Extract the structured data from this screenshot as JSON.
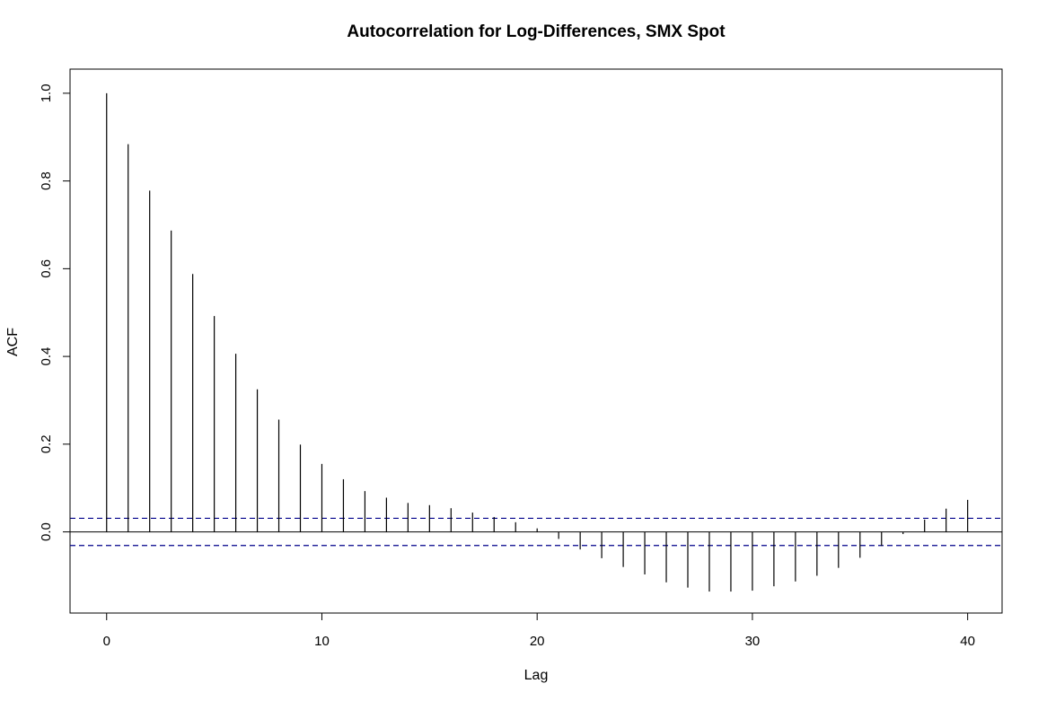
{
  "chart_data": {
    "type": "bar",
    "subtype": "acf-stem",
    "title": "Autocorrelation for Log-Differences,  SMX Spot",
    "xlabel": "Lag",
    "ylabel": "ACF",
    "xlim": [
      -1.7,
      41.6
    ],
    "ylim": [
      -0.185,
      1.055
    ],
    "x_ticks": [
      0,
      10,
      20,
      30,
      40
    ],
    "x_tick_labels": [
      "0",
      "10",
      "20",
      "30",
      "40"
    ],
    "y_ticks": [
      0.0,
      0.2,
      0.4,
      0.6,
      0.8,
      1.0
    ],
    "y_tick_labels": [
      "0.0",
      "0.2",
      "0.4",
      "0.6",
      "0.8",
      "1.0"
    ],
    "lags": [
      0,
      1,
      2,
      3,
      4,
      5,
      6,
      7,
      8,
      9,
      10,
      11,
      12,
      13,
      14,
      15,
      16,
      17,
      18,
      19,
      20,
      21,
      22,
      23,
      24,
      25,
      26,
      27,
      28,
      29,
      30,
      31,
      32,
      33,
      34,
      35,
      36,
      37,
      38,
      39,
      40
    ],
    "values": [
      1.0,
      0.884,
      0.778,
      0.687,
      0.588,
      0.492,
      0.406,
      0.325,
      0.256,
      0.199,
      0.155,
      0.12,
      0.093,
      0.078,
      0.066,
      0.061,
      0.054,
      0.044,
      0.034,
      0.022,
      0.008,
      -0.016,
      -0.04,
      -0.06,
      -0.08,
      -0.097,
      -0.115,
      -0.127,
      -0.136,
      -0.136,
      -0.134,
      -0.124,
      -0.113,
      -0.1,
      -0.082,
      -0.059,
      -0.032,
      -0.005,
      0.028,
      0.053,
      0.073
    ],
    "confidence_bound": 0.031,
    "confidence_line_color": "#00008B",
    "bar_color": "#000000",
    "zero_line": true,
    "grid": false,
    "legend": "none"
  }
}
